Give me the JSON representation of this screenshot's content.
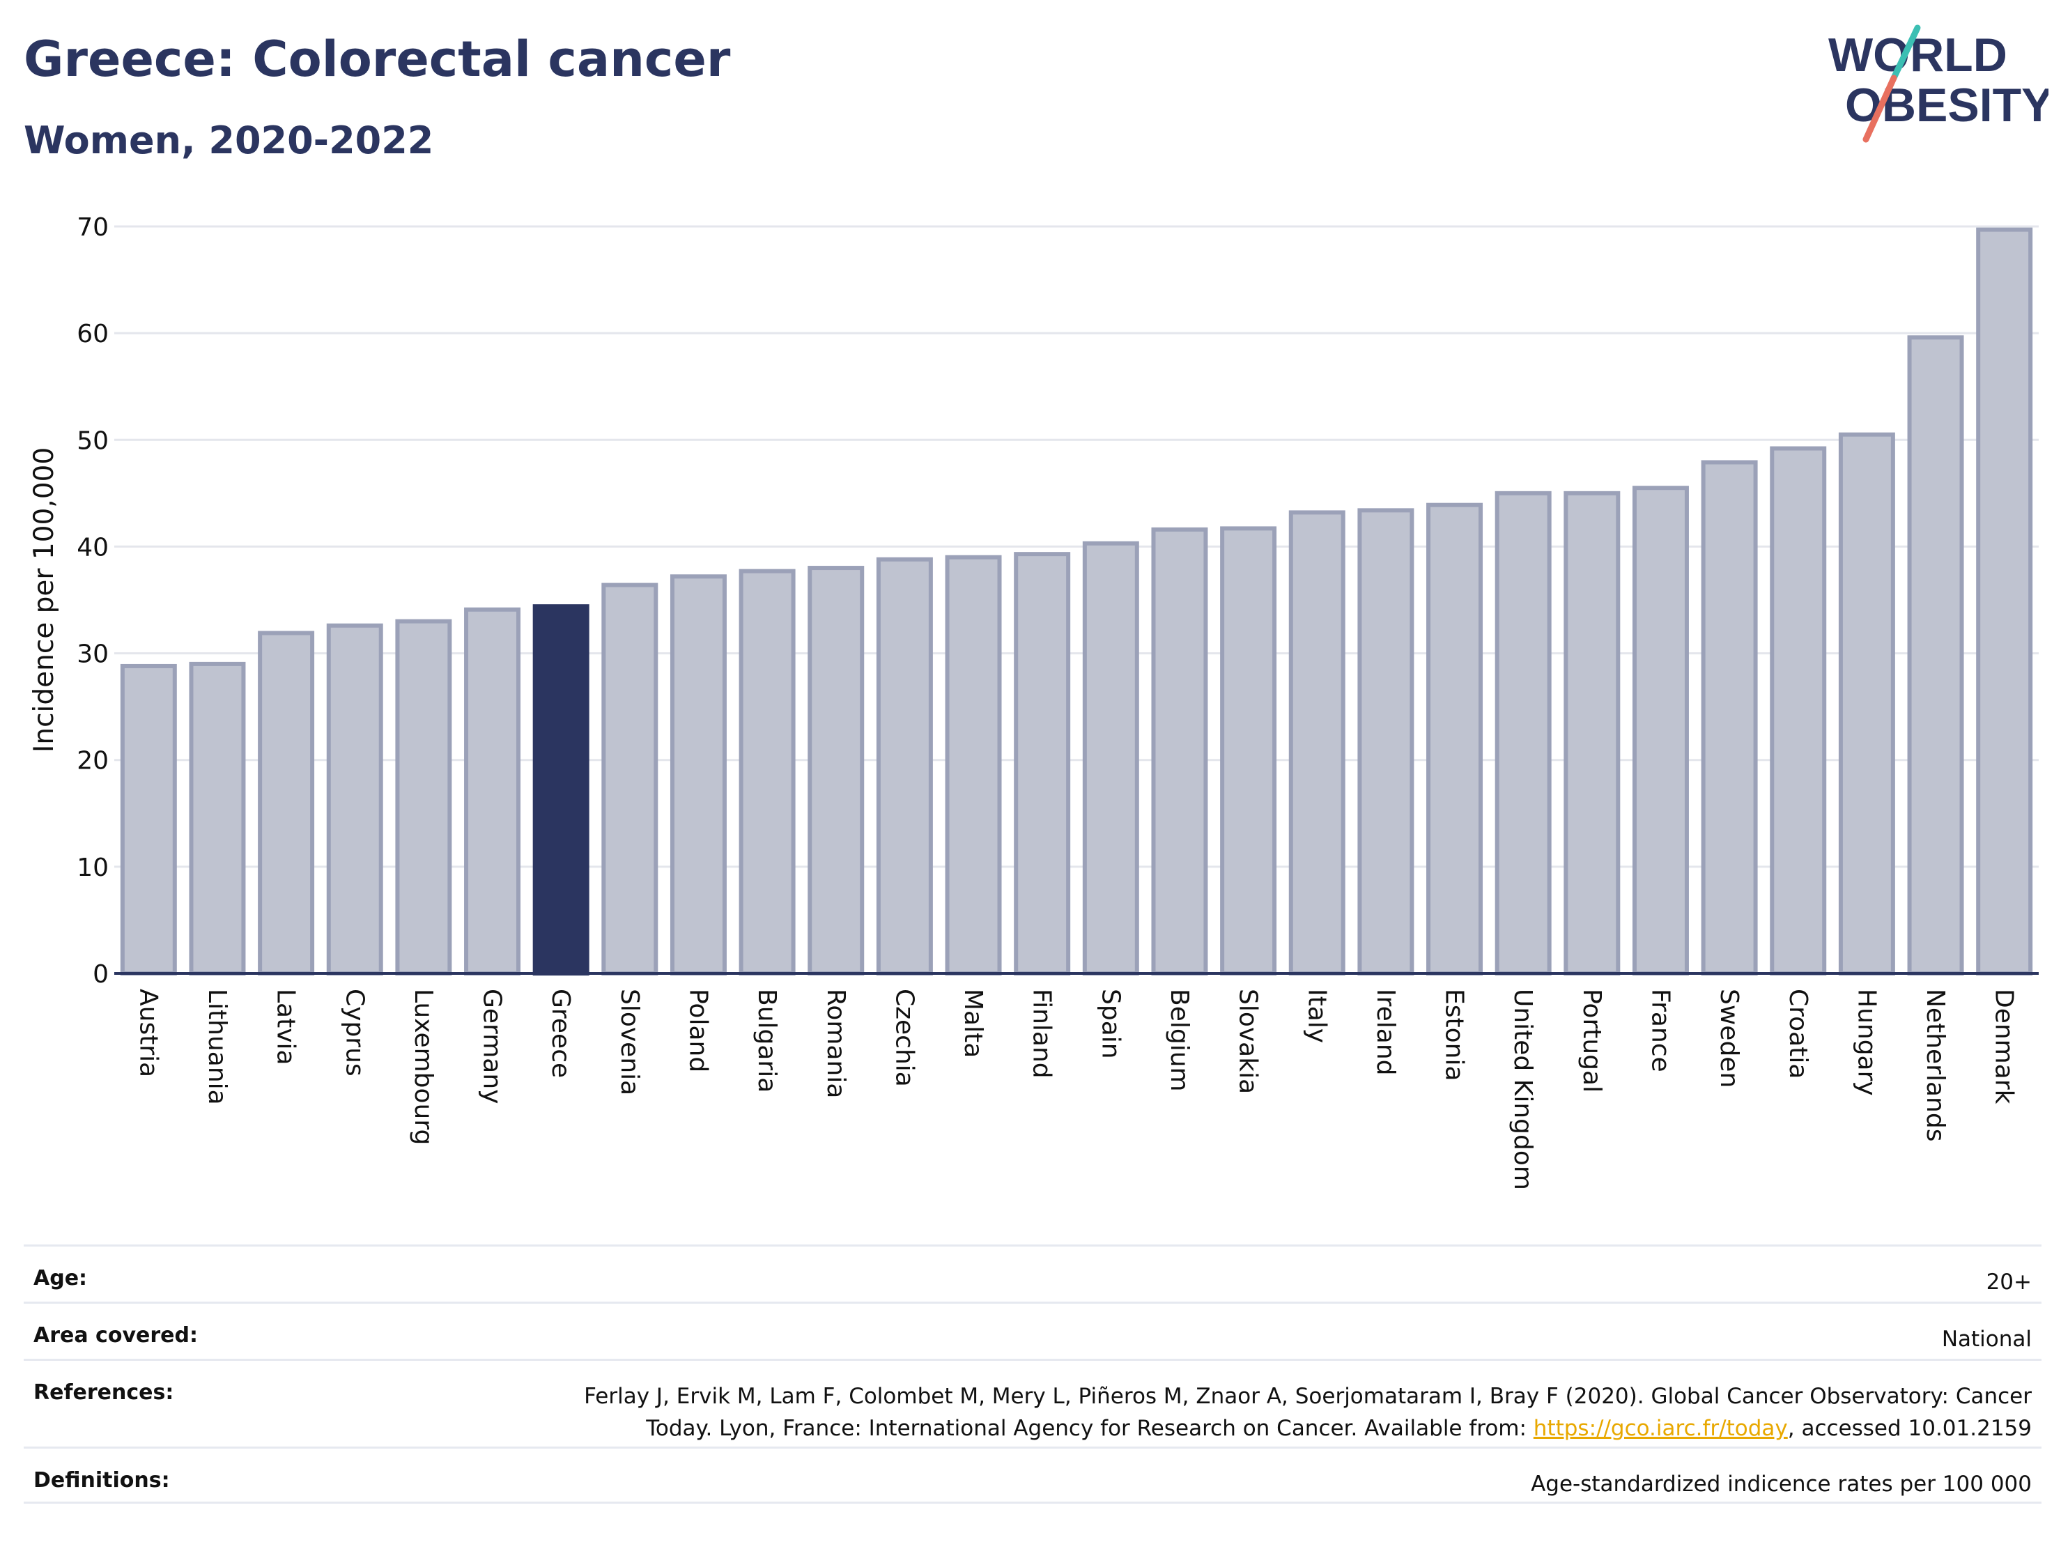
{
  "header": {
    "title": "Greece: Colorectal cancer",
    "subtitle": "Women, 2020-2022"
  },
  "logo": {
    "line1": "WORLD",
    "line2": "OBESITY"
  },
  "chart_data": {
    "type": "bar",
    "title": "Greece: Colorectal cancer",
    "subtitle": "Women, 2020-2022",
    "xlabel": "",
    "ylabel": "Incidence per 100,000",
    "ylim": [
      0,
      70
    ],
    "yticks": [
      0,
      10,
      20,
      30,
      40,
      50,
      60,
      70
    ],
    "grid": true,
    "highlight": "Greece",
    "colors": {
      "bar": "#bfc3d0",
      "bar_border": "#9ba1b8",
      "highlight": "#2b3560",
      "grid": "#e4e6ec",
      "axis": "#2b3560"
    },
    "categories": [
      "Austria",
      "Lithuania",
      "Latvia",
      "Cyprus",
      "Luxembourg",
      "Germany",
      "Greece",
      "Slovenia",
      "Poland",
      "Bulgaria",
      "Romania",
      "Czechia",
      "Malta",
      "Finland",
      "Spain",
      "Belgium",
      "Slovakia",
      "Italy",
      "Ireland",
      "Estonia",
      "United Kingdom",
      "Portugal",
      "France",
      "Sweden",
      "Croatia",
      "Hungary",
      "Netherlands",
      "Denmark"
    ],
    "values": [
      28.8,
      29.0,
      31.9,
      32.6,
      33.0,
      34.1,
      34.4,
      36.4,
      37.2,
      37.7,
      38.0,
      38.8,
      39.0,
      39.3,
      40.3,
      41.6,
      41.7,
      43.2,
      43.4,
      43.9,
      45.0,
      45.0,
      45.5,
      47.9,
      49.2,
      50.5,
      59.6,
      69.7
    ]
  },
  "info": {
    "age": {
      "label": "Age:",
      "value": "20+"
    },
    "area": {
      "label": "Area covered:",
      "value": "National"
    },
    "references": {
      "label": "References:",
      "text_line1": "Ferlay J, Ervik M, Lam F, Colombet M, Mery L, Piñeros M, Znaor A, Soerjomataram I, Bray F (2020). Global Cancer Observatory: Cancer",
      "text_pre_link": "Today. Lyon, France: International Agency for Research on Cancer. Available from: ",
      "link": "https://gco.iarc.fr/today",
      "text_post_link": ", accessed 10.01.2159"
    },
    "definitions": {
      "label": "Definitions:",
      "value": "Age-standardized indicence rates per 100 000"
    }
  }
}
